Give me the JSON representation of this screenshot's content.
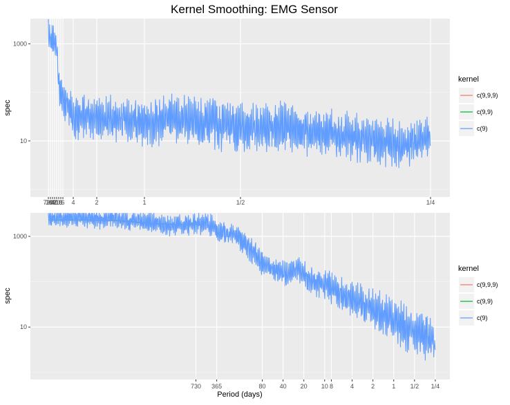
{
  "chart_data": [
    {
      "type": "line",
      "title": "Kernel Smoothing: EMG Sensor",
      "xlabel": "",
      "ylabel": "spec",
      "y_scale": "log10",
      "ylim": [
        0.7,
        3300
      ],
      "y_ticks": [
        {
          "value": 1000,
          "label": "1000"
        },
        {
          "value": 10,
          "label": "10"
        }
      ],
      "x_ticks": [
        {
          "value": 5e-05,
          "label": "730"
        },
        {
          "value": 8e-05,
          "label": "365"
        },
        {
          "value": 0.00012,
          "label": "80"
        },
        {
          "value": 0.00018,
          "label": "40"
        },
        {
          "value": 0.0003,
          "label": "20"
        },
        {
          "value": 0.004,
          "label": "10"
        },
        {
          "value": 0.009,
          "label": "8"
        },
        {
          "value": 0.02,
          "label": "6"
        },
        {
          "value": 0.25,
          "label": "4"
        },
        {
          "value": 0.5,
          "label": "2"
        },
        {
          "value": 1,
          "label": "1"
        },
        {
          "value": 2,
          "label": "1/2"
        },
        {
          "value": 4,
          "label": "1/4"
        }
      ],
      "grid": true,
      "legend": {
        "title": "kernel",
        "position": "right",
        "entries": [
          {
            "label": "c(9,9,9)",
            "color": "#F8766D"
          },
          {
            "label": "c(9,9)",
            "color": "#00BA38"
          },
          {
            "label": "c(9)",
            "color": "#619CFF"
          }
        ]
      },
      "series": [
        {
          "name": "c(9,9,9)",
          "color": "#F8766D",
          "values": []
        },
        {
          "name": "c(9,9)",
          "color": "#00BA38",
          "values": []
        },
        {
          "name": "c(9)",
          "color": "#619CFF",
          "x": [
            1e-05,
            0.0003,
            0.0008,
            0.002,
            0.005,
            0.01,
            0.03,
            0.08,
            0.15,
            0.25,
            0.4,
            0.5,
            0.6,
            0.8,
            1.0,
            1.2,
            1.5,
            1.8,
            2.0,
            2.3,
            2.6,
            3.0,
            3.3,
            3.6,
            4.0
          ],
          "values": [
            2500,
            900,
            450,
            300,
            150,
            90,
            70,
            50,
            40,
            30,
            35,
            28,
            30,
            25,
            22,
            30,
            25,
            20,
            18,
            20,
            15,
            12,
            10,
            8,
            12
          ],
          "spread": [
            1.0,
            1.8,
            2.2,
            2.2,
            2.5,
            2.5,
            2.6,
            2.8,
            3.0,
            3.0,
            3.2,
            3.2,
            3.2,
            3.4,
            3.6,
            3.6,
            3.8,
            3.8,
            3.6,
            3.8,
            3.8,
            3.8,
            3.8,
            3.6,
            3.0
          ]
        }
      ]
    },
    {
      "type": "line",
      "title": "",
      "xlabel": "Period (days)",
      "ylabel": "spec",
      "x_scale": "log10 (frequency, labelled by period in days)",
      "y_scale": "log10",
      "ylim": [
        0.7,
        3300
      ],
      "y_ticks": [
        {
          "value": 1000,
          "label": "1000"
        },
        {
          "value": 10,
          "label": "10"
        }
      ],
      "x_ticks": [
        {
          "value": 0.00137,
          "label": "730"
        },
        {
          "value": 0.00274,
          "label": "365"
        },
        {
          "value": 0.0125,
          "label": "80"
        },
        {
          "value": 0.025,
          "label": "40"
        },
        {
          "value": 0.05,
          "label": "20"
        },
        {
          "value": 0.1,
          "label": "10"
        },
        {
          "value": 0.125,
          "label": "8"
        },
        {
          "value": 0.25,
          "label": "4"
        },
        {
          "value": 0.5,
          "label": "2"
        },
        {
          "value": 1,
          "label": "1"
        },
        {
          "value": 2,
          "label": "1/2"
        },
        {
          "value": 4,
          "label": "1/4"
        }
      ],
      "xlim": [
        5.5e-06,
        6.5
      ],
      "grid": true,
      "legend": {
        "title": "kernel",
        "position": "right",
        "entries": [
          {
            "label": "c(9,9,9)",
            "color": "#F8766D"
          },
          {
            "label": "c(9,9)",
            "color": "#00BA38"
          },
          {
            "label": "c(9)",
            "color": "#619CFF"
          }
        ]
      },
      "series": [
        {
          "name": "c(9,9,9)",
          "color": "#F8766D",
          "x": [
            1e-05,
            3e-05,
            0.0001,
            0.0003,
            0.001,
            0.0015
          ],
          "values": [
            2300,
            2300,
            2200,
            1900,
            1800,
            1850
          ],
          "spread": [
            0,
            0,
            0,
            0,
            0,
            0
          ]
        },
        {
          "name": "c(9,9)",
          "color": "#00BA38",
          "x": [
            1e-05,
            3e-05,
            0.0001,
            0.0003,
            0.001,
            0.0015
          ],
          "values": [
            2300,
            2300,
            2250,
            1950,
            1800,
            1850
          ],
          "spread": [
            0,
            0,
            0,
            0,
            0,
            0
          ]
        },
        {
          "name": "c(9)",
          "color": "#619CFF",
          "x": [
            1e-05,
            3e-05,
            0.0001,
            0.0002,
            0.0003,
            0.0006,
            0.001,
            0.0015,
            0.002,
            0.003,
            0.005,
            0.008,
            0.012,
            0.02,
            0.03,
            0.04,
            0.05,
            0.07,
            0.1,
            0.15,
            0.25,
            0.4,
            0.5,
            0.7,
            1.0,
            1.5,
            2.0,
            3.0,
            4.0
          ],
          "values": [
            2600,
            2600,
            2400,
            2100,
            2000,
            1700,
            1800,
            2000,
            1900,
            1300,
            1100,
            550,
            280,
            180,
            150,
            200,
            150,
            100,
            90,
            60,
            40,
            30,
            25,
            20,
            15,
            10,
            8,
            6,
            4
          ],
          "spread": [
            1.0,
            1.0,
            1.05,
            1.08,
            1.1,
            1.1,
            1.15,
            1.15,
            1.15,
            1.2,
            1.25,
            1.3,
            1.35,
            1.4,
            1.5,
            1.6,
            1.6,
            1.8,
            2.0,
            2.2,
            2.4,
            2.6,
            2.8,
            3.2,
            3.6,
            4.0,
            4.2,
            4.0,
            3.0
          ]
        }
      ]
    }
  ]
}
